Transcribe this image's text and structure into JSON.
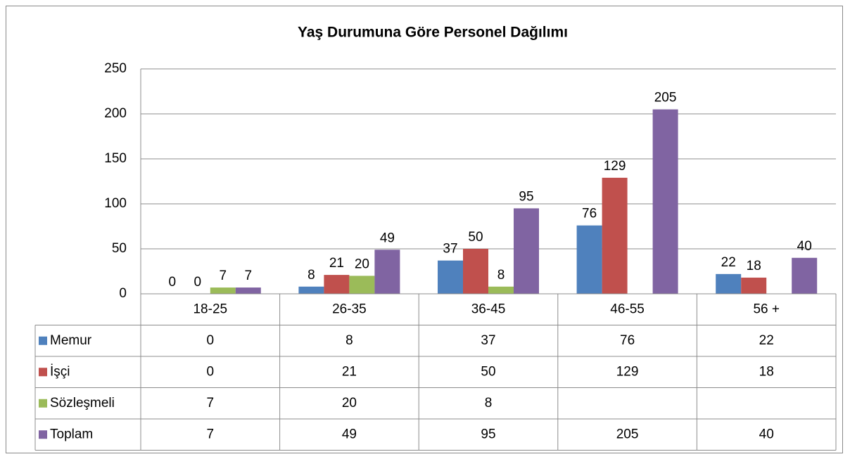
{
  "chart_data": {
    "type": "bar",
    "title": "Yaş Durumuna Göre Personel Dağılımı",
    "categories": [
      "18-25",
      "26-35",
      "36-45",
      "46-55",
      "56 +"
    ],
    "series": [
      {
        "name": "Memur",
        "color": "#4f81bd",
        "values": [
          0,
          8,
          37,
          76,
          22
        ]
      },
      {
        "name": "İşçi",
        "color": "#c0504d",
        "values": [
          0,
          21,
          50,
          129,
          18
        ]
      },
      {
        "name": "Sözleşmeli",
        "color": "#9bbb59",
        "values": [
          7,
          20,
          8,
          null,
          null
        ]
      },
      {
        "name": "Toplam",
        "color": "#8064a2",
        "values": [
          7,
          49,
          95,
          205,
          40
        ]
      }
    ],
    "ylim": [
      0,
      250
    ],
    "yticks": [
      0,
      50,
      100,
      150,
      200,
      250
    ],
    "grid": true,
    "data_table": true
  }
}
